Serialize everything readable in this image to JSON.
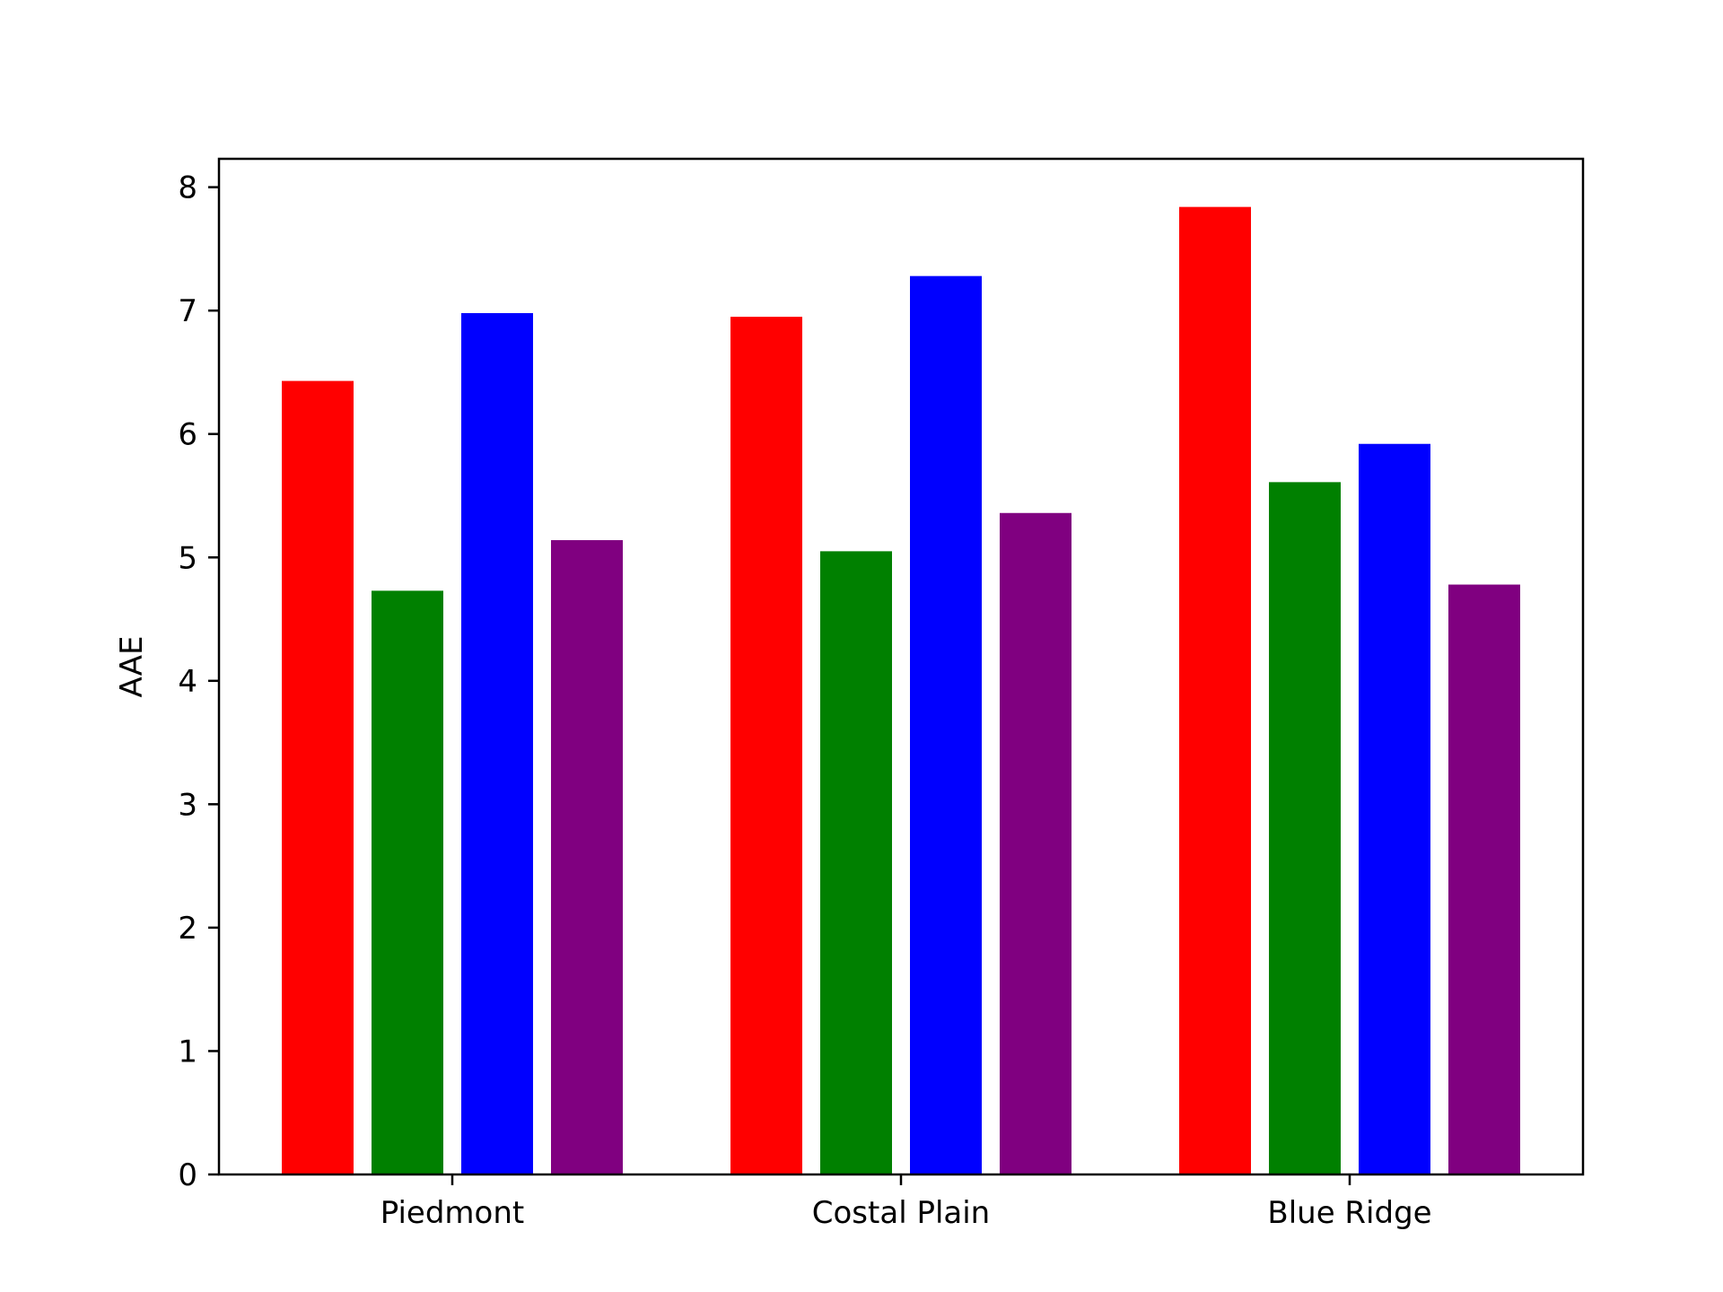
{
  "chart_data": {
    "type": "bar",
    "title": "",
    "xlabel": "",
    "ylabel": "AAE",
    "categories": [
      "Piedmont",
      "Costal Plain",
      "Blue Ridge"
    ],
    "series": [
      {
        "color": "#ff0000",
        "values": [
          6.43,
          6.95,
          7.84
        ]
      },
      {
        "color": "#008000",
        "values": [
          4.73,
          5.05,
          5.61
        ]
      },
      {
        "color": "#0000ff",
        "values": [
          6.98,
          7.28,
          5.92
        ]
      },
      {
        "color": "#800080",
        "values": [
          5.14,
          5.36,
          4.78
        ]
      }
    ],
    "ylim": [
      0,
      8.23
    ],
    "yticks": [
      0,
      1,
      2,
      3,
      4,
      5,
      6,
      7,
      8
    ],
    "grid": false,
    "legend": "none"
  }
}
